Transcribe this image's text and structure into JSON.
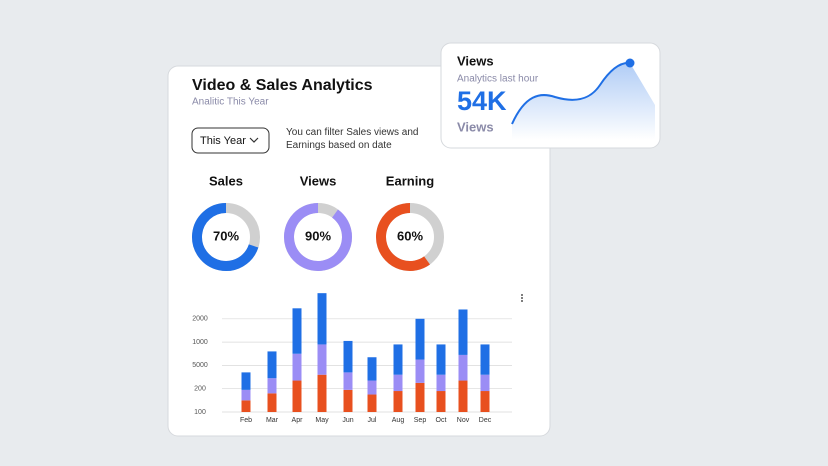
{
  "header": {
    "title": "Video & Sales Analytics",
    "subtitle": "Analitic This Year"
  },
  "filter": {
    "label": "This Year",
    "hint": "You can filter Sales views and Earnings based on date"
  },
  "donuts": [
    {
      "title": "Sales",
      "value": 70,
      "value_label": "70%",
      "color": "#1f6fe5"
    },
    {
      "title": "Views",
      "value": 90,
      "value_label": "90%",
      "color": "#9b8df5"
    },
    {
      "title": "Earning",
      "value": 60,
      "value_label": "60%",
      "color": "#e8501f"
    }
  ],
  "bar_chart": {
    "type": "stacked-bar",
    "categories": [
      "Feb",
      "Mar",
      "Apr",
      "May",
      "Jun",
      "Jul",
      "Aug",
      "Sep",
      "Oct",
      "Nov",
      "Dec"
    ],
    "series": [
      {
        "color": "#e8501f",
        "values": [
          0.5,
          0.8,
          1.35,
          1.6,
          0.95,
          0.75,
          0.9,
          1.25,
          0.9,
          1.35,
          0.9
        ]
      },
      {
        "color": "#9b8df5",
        "values": [
          0.45,
          0.65,
          1.15,
          1.3,
          0.75,
          0.6,
          0.7,
          1.0,
          0.7,
          1.1,
          0.7
        ]
      },
      {
        "color": "#1f6fe5",
        "values": [
          0.75,
          1.15,
          1.95,
          2.2,
          1.35,
          1.0,
          1.3,
          1.75,
          1.3,
          1.95,
          1.3
        ]
      }
    ],
    "ylim": [
      0,
      5.3
    ],
    "yticks": [
      {
        "value": 0,
        "label": "100"
      },
      {
        "value": 1,
        "label": "200"
      },
      {
        "value": 2,
        "label": "5000"
      },
      {
        "value": 3,
        "label": "1000"
      },
      {
        "value": 4,
        "label": "2000"
      }
    ],
    "grid": true
  },
  "views_card": {
    "title": "Views",
    "subtitle": "Analytics last hour",
    "value": "54K",
    "caption": "Views"
  }
}
